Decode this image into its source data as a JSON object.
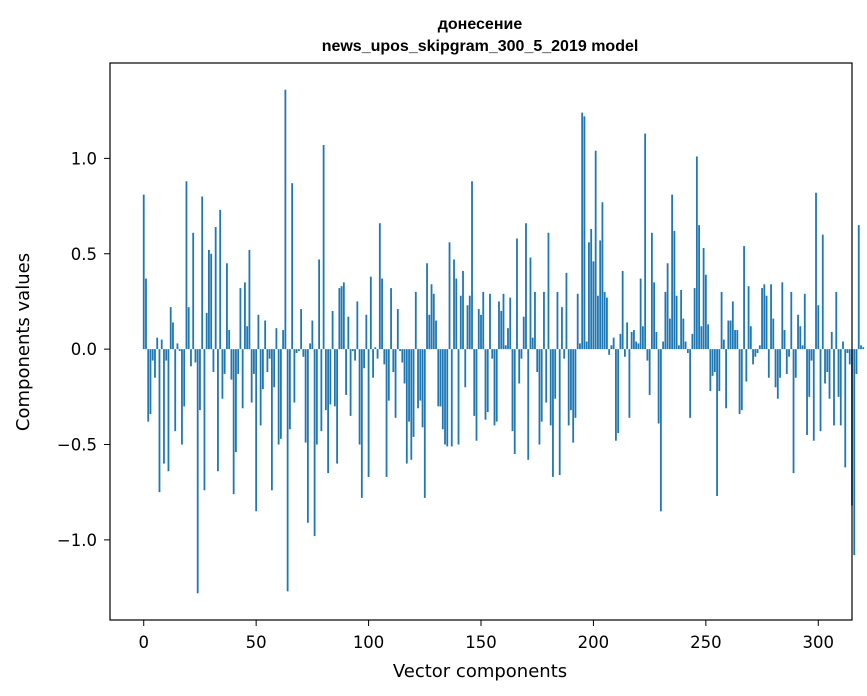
{
  "chart_data": {
    "type": "bar",
    "title": "донесение",
    "subtitle": "news_upos_skipgram_300_5_2019 model",
    "xlabel": "Vector components",
    "ylabel": "Components values",
    "xlim": [
      -15,
      315
    ],
    "ylim": [
      -1.42,
      1.5
    ],
    "xticks": [
      0,
      50,
      100,
      150,
      200,
      250,
      300
    ],
    "yticks": [
      -1.0,
      -0.5,
      0.0,
      0.5,
      1.0
    ],
    "ytick_labels": [
      "−1.0",
      "−0.5",
      "0.0",
      "0.5",
      "1.0"
    ],
    "bar_color": "#1f77b4",
    "grid": false,
    "legend": "none",
    "values": [
      0.81,
      0.37,
      -0.38,
      -0.34,
      -0.06,
      -0.15,
      0.06,
      -0.75,
      0.05,
      -0.6,
      -0.06,
      -0.64,
      0.22,
      0.14,
      -0.43,
      0.03,
      -0.01,
      -0.5,
      -0.3,
      0.88,
      0.22,
      -0.09,
      0.61,
      -0.07,
      -1.28,
      -0.32,
      0.8,
      -0.74,
      0.19,
      0.52,
      0.5,
      -0.12,
      0.64,
      -0.64,
      0.73,
      -0.26,
      -0.13,
      0.45,
      0.1,
      -0.16,
      -0.76,
      -0.54,
      -0.13,
      0.32,
      -0.31,
      0.35,
      0.12,
      0.52,
      -0.28,
      -0.13,
      -0.85,
      0.18,
      -0.4,
      -0.21,
      0.15,
      -0.12,
      -0.05,
      -0.74,
      -0.2,
      0.11,
      -0.5,
      -0.47,
      0.1,
      1.36,
      -1.27,
      -0.42,
      0.87,
      -0.28,
      -0.02,
      -0.01,
      0.21,
      -0.04,
      -0.49,
      -0.91,
      0.03,
      0.15,
      -0.98,
      -0.5,
      0.47,
      -0.43,
      1.07,
      -0.32,
      -0.65,
      -0.29,
      0.2,
      -0.3,
      -0.6,
      0.32,
      0.33,
      0.35,
      -0.24,
      0.17,
      -0.35,
      -0.01,
      -0.06,
      0.25,
      -0.5,
      -0.78,
      -0.1,
      0.18,
      -0.67,
      0.38,
      -0.15,
      0.01,
      -0.05,
      0.66,
      0.37,
      -0.08,
      -0.67,
      -0.27,
      0.32,
      -0.12,
      -0.36,
      0.21,
      -0.01,
      -0.07,
      -0.18,
      -0.6,
      -0.38,
      -0.58,
      -0.46,
      0.3,
      -0.31,
      -0.27,
      -0.41,
      -0.78,
      0.45,
      0.18,
      0.34,
      0.29,
      0.15,
      -0.3,
      -0.3,
      -0.42,
      -0.5,
      -0.51,
      0.56,
      -0.51,
      0.47,
      0.37,
      -0.5,
      0.28,
      0.41,
      -0.2,
      0.23,
      0.28,
      0.88,
      -0.35,
      -0.48,
      0.21,
      0.18,
      0.3,
      -0.37,
      -0.33,
      0.29,
      -0.05,
      -0.4,
      -0.38,
      0.25,
      0.2,
      0.29,
      0.02,
      0.11,
      0.27,
      -0.43,
      -0.55,
      0.58,
      -0.18,
      -0.05,
      0.17,
      0.66,
      -0.58,
      0.48,
      0.06,
      0.3,
      -0.12,
      -0.5,
      -0.38,
      0.3,
      -0.28,
      0.61,
      -0.4,
      -0.67,
      -0.26,
      0.3,
      -0.66,
      0.22,
      -0.05,
      0.4,
      -0.4,
      -0.32,
      -0.49,
      -0.36,
      0.29,
      0.03,
      1.24,
      1.22,
      0.04,
      0.56,
      0.63,
      0.46,
      1.04,
      0.28,
      0.57,
      0.77,
      0.3,
      0.27,
      -0.03,
      0.02,
      0.06,
      -0.48,
      -0.44,
      0.08,
      0.41,
      -0.04,
      0.14,
      -0.36,
      0.09,
      0.1,
      0.04,
      0.03,
      0.37,
      0.12,
      1.13,
      -0.06,
      -0.24,
      0.61,
      0.35,
      0.09,
      -0.39,
      -0.85,
      0.04,
      0.3,
      0.45,
      0.16,
      0.81,
      0.62,
      0.28,
      0.02,
      0.31,
      0.16,
      0.04,
      -0.02,
      -0.36,
      0.08,
      0.32,
      1.01,
      0.65,
      0.12,
      0.53,
      0.39,
      0.13,
      -0.22,
      -0.14,
      -0.12,
      -0.77,
      -0.22,
      0.3,
      0.05,
      -0.31,
      0.15,
      0.15,
      0.25,
      0.1,
      0.1,
      -0.34,
      -0.32,
      0.54,
      -0.17,
      0.33,
      0.12,
      -0.08,
      -0.04,
      -0.02,
      0.02,
      0.32,
      0.34,
      0.28,
      -0.15,
      0.34,
      0.16,
      -0.2,
      -0.26,
      -0.15,
      0.35,
      0.1,
      -0.13,
      -0.04,
      0.3,
      -0.65,
      -0.15,
      0.18,
      0.12,
      0.02,
      0.29,
      -0.45,
      -0.25,
      -0.06,
      -0.48,
      0.82,
      0.23,
      -0.43,
      0.6,
      -0.18,
      -0.12,
      -0.26,
      0.09,
      -0.4,
      0.3,
      -0.25,
      -0.4,
      0.04,
      -0.62,
      -0.02,
      -0.08,
      -0.82,
      -1.08,
      -0.13,
      0.65,
      0.02,
      0.01
    ]
  }
}
